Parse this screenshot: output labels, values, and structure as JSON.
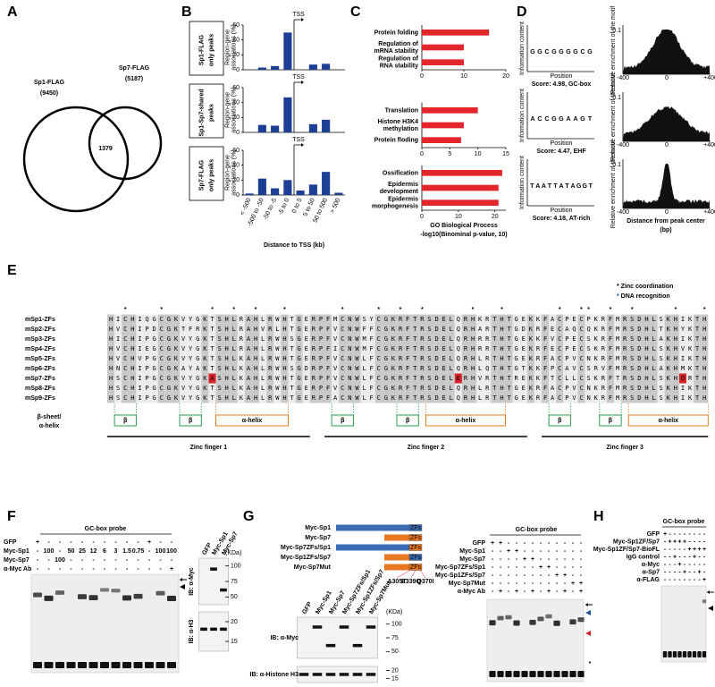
{
  "panel_letters": [
    "A",
    "B",
    "C",
    "D",
    "E",
    "F",
    "G",
    "H"
  ],
  "venn": {
    "sets": [
      {
        "name": "Sp1-FLAG",
        "count": "(9450)"
      },
      {
        "name": "Sp7-FLAG",
        "count": "(5187)"
      }
    ],
    "overlap": "1379"
  },
  "chart_data": [
    {
      "type": "bar",
      "categories": [
        "< -500",
        "-500 to -50",
        "-50 to -5",
        "-5 to 0",
        "0 to 5",
        "5 to 50",
        "50 to 500",
        "> 500"
      ],
      "ylabel": "Region-gene associations (%)",
      "xlabel": "Distance to TSS (kb)",
      "annotation": "TSS",
      "ylim": [
        0,
        60
      ],
      "yticks": [
        0,
        20,
        40,
        60
      ],
      "color": "#1c3f94",
      "series": [
        {
          "name": "Sp1-FLAG only peaks",
          "values": [
            0,
            3,
            5,
            50,
            0,
            7,
            8,
            0
          ]
        },
        {
          "name": "Sp1-Sp7-shared peaks",
          "values": [
            0,
            10,
            9,
            47,
            0,
            11,
            17,
            0
          ]
        },
        {
          "name": "Sp7-FLAG only peaks",
          "values": [
            2,
            22,
            9,
            20,
            6,
            14,
            31,
            3
          ]
        }
      ]
    },
    {
      "type": "hbar",
      "color": "#e3262b",
      "xlabel": "GO Biological Process",
      "xlabel2": "-log10(Binominal p-value, 10)",
      "groups": [
        {
          "categories": [
            "Protein folding",
            "Regulation of mRNA stability",
            "Regulation of RNA stability"
          ],
          "values": [
            16,
            10,
            10
          ],
          "xlim": [
            0,
            20
          ],
          "xticks": [
            0,
            10,
            20
          ]
        },
        {
          "categories": [
            "Translation",
            "Histone H3K4 methylation",
            "Protein floding"
          ],
          "values": [
            10,
            7.5,
            7
          ],
          "xlim": [
            0,
            15
          ],
          "xticks": [
            0,
            5,
            10,
            15
          ]
        },
        {
          "categories": [
            "Ossification",
            "Epidermis development",
            "Epidermis morphogenesis"
          ],
          "values": [
            22,
            21,
            21
          ],
          "xlim": [
            0,
            23
          ],
          "xticks": [
            0,
            10,
            20
          ]
        }
      ]
    }
  ],
  "motifs": {
    "logo_ylabel": "Information content",
    "logo_xlabel": "Position",
    "hist_ylabel": "Relative enrichment of the motif",
    "hist_ytick": "0.1",
    "hist_xticks": [
      "-400",
      "0",
      "+400"
    ],
    "distance_label": "Distance from peak center (bp)",
    "rows": [
      {
        "logo": "GGCGGGGCG",
        "score": "Score: 4.98, GC-box"
      },
      {
        "logo": "ACCGGAAGT",
        "score": "Score: 4.47, EHF"
      },
      {
        "logo": "TAATTATAGGT",
        "score": "Score: 4.18, AT-rich"
      }
    ]
  },
  "alignment": {
    "legend": [
      "* Zinc coordination",
      "* DNA recognition"
    ],
    "zinc_stars": "  *    *            *   *       *    *            *   *       *  *            *   *",
    "dna_stars": "              *  *                      *  *                      *  *  *",
    "names": [
      "mSp1-ZFs",
      "mSp2-ZFs",
      "mSp3-ZFs",
      "mSp4-ZFs",
      "mSp5-ZFs",
      "mSp6-ZFs",
      "mSp7-ZFs",
      "mSp8-ZFs",
      "mSp9-ZFs"
    ],
    "sequences": [
      "HICHIQGCGKVYGKTSHLRAHLRWHTGERPFMCNWSYCGKRFTRSDELQRHKRTHTGEKKFACPECPKRFMRSDHLSKHIKTH",
      "HVCHIPDCGKTFRKTSHLRAHVRLHTGERPFVCNWFFCGKRFTRSDELQRHARTHTGDKRFECAQCQKRFMRSDHLTKHYKTH",
      "HICHIPGCGKVYGKTSHLRAHLRWHSGERPFVCNWMFCGKRFTRSDELQRHRRTHTGEKKFVCPECSKRFMRSDHLAKHIKTH",
      "HVCHIEGCGKVYGKTSHLRAHLRWHTGERPFICNWMFCGKRFTRSDELQRHRRTHTGEKRFECPECSKRFMRSDHLSKHVKTH",
      "HVCHVPGCGKVYGKTSHLKAHLRWHTGERPFVCNWLFCGKRFTRSDELQRHLRTHTGEKRFACPVCNKRFMRSDHLSKHIKTH",
      "HNCHIPGCGKAYAKTSHLKAHLRWHSGDRPFVCNWLFCGKRFTRSDELQRHLQTHTGTKKFPCAVCSRVFMRSDHLAKHMKTH",
      "HSCHIPGCGKVYGKASHLKAHLRWHTGERPFVCNWLFCGKRFTRSDELERHVRTHTREKKFTCLLCSKRFTRSDHLSKHQRTH",
      "HSCHIPGCGKVYGKTSHLKAHLRWHTGERPFVCNWLFCGKRFTRSDELQRHLRTHTGEKRFACPVCNKRFMRSDHLSKHIKTH",
      "HSCHIPGCGKVYGKTSHLKAHLRWHTGERPFACNWLFCGKRFTRSDELQRHLRTHTGEKRFACPVCNKRFMRSDHLSKHIKTH"
    ],
    "red_columns": [
      14,
      48,
      79
    ],
    "highlight_row": 6,
    "structure_label": [
      "β-sheet/",
      "α-helix"
    ],
    "elements": [
      {
        "label": "β",
        "from": 1,
        "to": 3
      },
      {
        "label": "β",
        "from": 10,
        "to": 12
      },
      {
        "label": "α-helix",
        "from": 15,
        "to": 24
      },
      {
        "label": "β",
        "from": 31,
        "to": 33
      },
      {
        "label": "β",
        "from": 40,
        "to": 42
      },
      {
        "label": "α-helix",
        "from": 44,
        "to": 54
      },
      {
        "label": "β",
        "from": 61,
        "to": 63
      },
      {
        "label": "β",
        "from": 68,
        "to": 70
      },
      {
        "label": "α-helix",
        "from": 72,
        "to": 82
      }
    ],
    "fingers": [
      {
        "label": "Zinc finger 1",
        "from": 0,
        "to": 27
      },
      {
        "label": "Zinc finger 2",
        "from": 30,
        "to": 57
      },
      {
        "label": "Zinc finger 3",
        "from": 60,
        "to": 82
      }
    ]
  },
  "panel_f": {
    "probe": "GC-box probe",
    "rows": [
      {
        "label": "GFP",
        "cells": [
          "+",
          "-",
          "-",
          "-",
          "-",
          "-",
          "-",
          "-",
          "-",
          "-",
          "+",
          "-",
          "-"
        ]
      },
      {
        "label": "Myc-Sp1",
        "cells": [
          "-",
          "100",
          "-",
          "50",
          "25",
          "12",
          "6",
          "3",
          "1.5",
          "0.75",
          "-",
          "100",
          "100"
        ]
      },
      {
        "label": "Myc-Sp7",
        "cells": [
          "-",
          "-",
          "100",
          "-",
          "-",
          "-",
          "-",
          "-",
          "-",
          "-",
          "-",
          "-",
          "-"
        ]
      },
      {
        "label": "α-Myc Ab",
        "cells": [
          "-",
          "-",
          "-",
          "-",
          "-",
          "-",
          "-",
          "-",
          "-",
          "-",
          "-",
          "-",
          "+"
        ]
      }
    ],
    "western": {
      "lanes": [
        "GFP",
        "Myc-Sp1",
        "Myc-Sp7"
      ],
      "unit": "(KDa)",
      "blots": [
        {
          "label": "IB: α-Myc",
          "markers": [
            100,
            75,
            50
          ]
        },
        {
          "label": "IB: α-H3",
          "markers": [
            20,
            15
          ]
        }
      ]
    }
  },
  "panel_g": {
    "zf_label": "ZFs",
    "constructs": [
      {
        "name": "Myc-Sp1",
        "body_color": "#3a6db5",
        "zf_color": "#3a6db5"
      },
      {
        "name": "Myc-Sp7",
        "body_color": "#e87722",
        "zf_color": "#e87722"
      },
      {
        "name": "Myc-Sp7ZFs/Sp1",
        "body_color": "#3a6db5",
        "zf_color": "#e87722"
      },
      {
        "name": "Myc-Sp1ZFs/Sp7",
        "body_color": "#e87722",
        "zf_color": "#3a6db5"
      },
      {
        "name": "Myc-Sp7Mut",
        "body_color": "#e87722",
        "zf_color": "#e87722"
      }
    ],
    "mutations": [
      "A305T",
      "E339Q",
      "Q370I"
    ],
    "western": {
      "lanes": [
        "GFP",
        "Myc-Sp1",
        "Myc-Sp7",
        "Myc-Sp7ZFs/Sp1",
        "Myc-Sp1ZFs/Sp7",
        "Myc-Sp7Mut"
      ],
      "unit": "(KDa)",
      "blots": [
        {
          "label": "IB: α-Myc",
          "markers": [
            100,
            75,
            50
          ]
        },
        {
          "label": "IB: α-Histone H3",
          "markers": [
            20,
            15
          ]
        }
      ]
    },
    "probe": "GC-box probe",
    "rows": [
      {
        "label": "GFP",
        "cells": [
          "+",
          "+",
          "-",
          "-",
          "-",
          "-",
          "-",
          "-",
          "-",
          "-",
          "-",
          "-"
        ]
      },
      {
        "label": "Myc-Sp1",
        "cells": [
          "-",
          "-",
          "+",
          "+",
          "-",
          "-",
          "-",
          "-",
          "-",
          "-",
          "-",
          "-"
        ]
      },
      {
        "label": "Myc-Sp7",
        "cells": [
          "-",
          "-",
          "-",
          "-",
          "+",
          "+",
          "-",
          "-",
          "-",
          "-",
          "-",
          "-"
        ]
      },
      {
        "label": "Myc-Sp7ZFs/Sp1",
        "cells": [
          "-",
          "-",
          "-",
          "-",
          "-",
          "-",
          "+",
          "+",
          "-",
          "-",
          "-",
          "-"
        ]
      },
      {
        "label": "Myc-Sp1ZFs/Sp7",
        "cells": [
          "-",
          "-",
          "-",
          "-",
          "-",
          "-",
          "-",
          "-",
          "+",
          "+",
          "-",
          "-"
        ]
      },
      {
        "label": "Myc-Sp7Mut",
        "cells": [
          "-",
          "-",
          "-",
          "-",
          "-",
          "-",
          "-",
          "-",
          "-",
          "-",
          "+",
          "+"
        ]
      },
      {
        "label": "α-Myc Ab",
        "cells": [
          "-",
          "+",
          "-",
          "+",
          "-",
          "+",
          "-",
          "+",
          "-",
          "+",
          "-",
          "+"
        ]
      }
    ],
    "asterisk": "*"
  },
  "panel_h": {
    "probe": "GC-box probe",
    "rows": [
      {
        "label": "GFP",
        "cells": [
          "+",
          "-",
          "-",
          "-",
          "-",
          "-",
          "-",
          "-",
          "-"
        ]
      },
      {
        "label": "Myc-Sp1ZF/Sp7",
        "cells": [
          "-",
          "+",
          "+",
          "+",
          "+",
          "-",
          "-",
          "-",
          "-"
        ]
      },
      {
        "label": "Myc-Sp1ZF/Sp7-BioFL",
        "cells": [
          "-",
          "-",
          "-",
          "-",
          "-",
          "+",
          "+",
          "+",
          "+"
        ]
      },
      {
        "label": "IgG control",
        "cells": [
          "-",
          "-",
          "+",
          "-",
          "-",
          "-",
          "+",
          "-",
          "-"
        ]
      },
      {
        "label": "α-Myc",
        "cells": [
          "-",
          "-",
          "-",
          "+",
          "-",
          "-",
          "-",
          "-",
          "-"
        ]
      },
      {
        "label": "α-Sp7",
        "cells": [
          "-",
          "-",
          "-",
          "-",
          "+",
          "-",
          "-",
          "+",
          "-"
        ]
      },
      {
        "label": "α-FLAG",
        "cells": [
          "-",
          "-",
          "-",
          "-",
          "-",
          "-",
          "-",
          "-",
          "+"
        ]
      }
    ]
  }
}
